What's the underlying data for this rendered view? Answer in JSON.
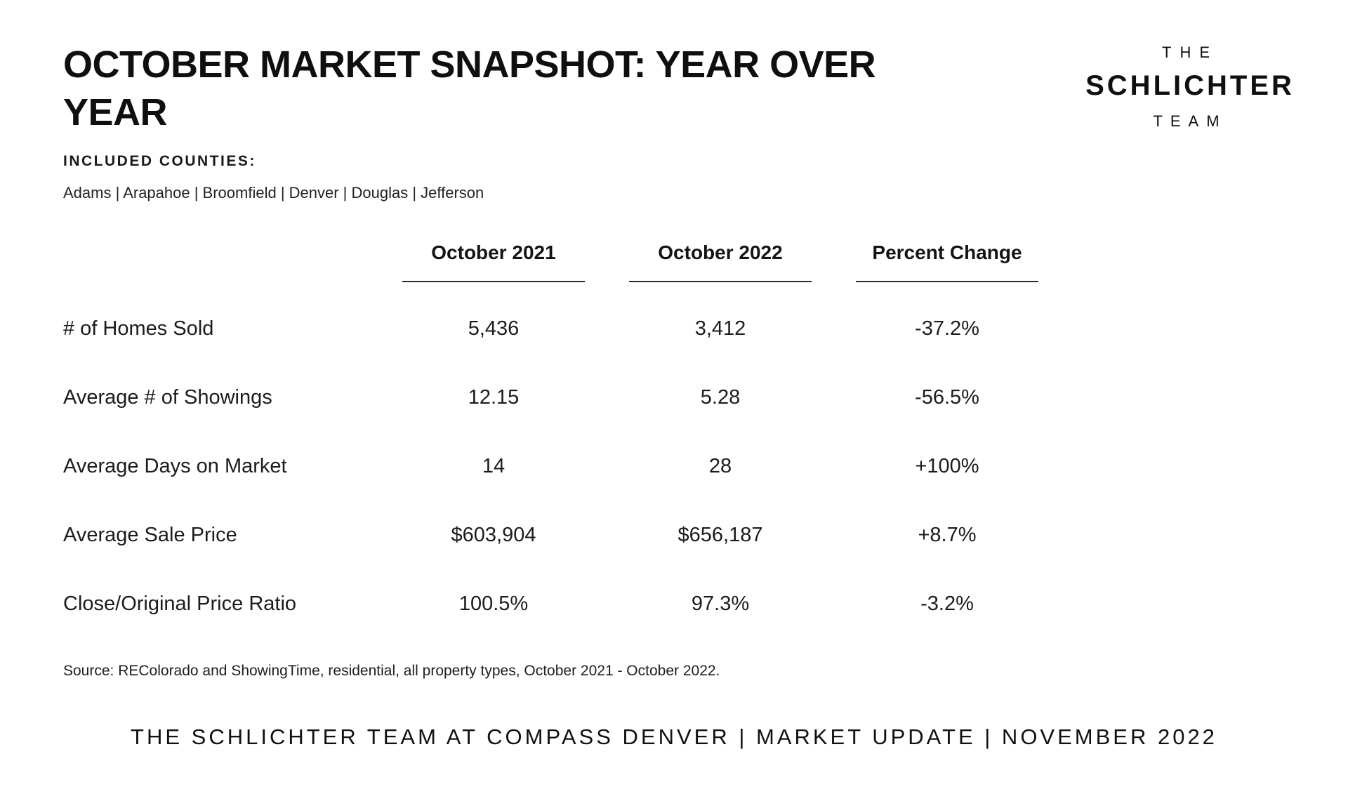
{
  "page": {
    "background_color": "#ffffff",
    "text_color": "#161616"
  },
  "header": {
    "title_line1": "OCTOBER MARKET SNAPSHOT: YEAR OVER",
    "title_line2": "YEAR"
  },
  "logo": {
    "line1": "THE",
    "line2": "SCHLICHTER",
    "line3": "TEAM"
  },
  "counties": {
    "heading": "INCLUDED COUNTIES:",
    "list": "Adams | Arapahoe | Broomfield | Denver | Douglas | Jefferson"
  },
  "table": {
    "columns": [
      "October 2021",
      "October 2022",
      "Percent Change"
    ],
    "rows": [
      {
        "label": "# of Homes Sold",
        "values": [
          "5,436",
          "3,412",
          "-37.2%"
        ]
      },
      {
        "label": "Average # of Showings",
        "values": [
          "12.15",
          "5.28",
          "-56.5%"
        ]
      },
      {
        "label": "Average Days on Market",
        "values": [
          "14",
          "28",
          "+100%"
        ]
      },
      {
        "label": "Average Sale Price",
        "values": [
          "$603,904",
          "$656,187",
          "+8.7%"
        ]
      },
      {
        "label": "Close/Original Price Ratio",
        "values": [
          "100.5%",
          "97.3%",
          "-3.2%"
        ]
      }
    ]
  },
  "chart_data": {
    "type": "table",
    "title": "October Market Snapshot: Year Over Year",
    "categories": [
      "# of Homes Sold",
      "Average # of Showings",
      "Average Days on Market",
      "Average Sale Price",
      "Close/Original Price Ratio"
    ],
    "series": [
      {
        "name": "October 2021",
        "values": [
          5436,
          12.15,
          14,
          603904,
          100.5
        ]
      },
      {
        "name": "October 2022",
        "values": [
          3412,
          5.28,
          28,
          656187,
          97.3
        ]
      },
      {
        "name": "Percent Change",
        "values": [
          -37.2,
          -56.5,
          100,
          8.7,
          -3.2
        ]
      }
    ]
  },
  "source_note": "Source: REColorado and ShowingTime, residential, all property types, October 2021 - October 2022.",
  "footer": "THE SCHLICHTER TEAM AT COMPASS DENVER | MARKET UPDATE | NOVEMBER 2022"
}
